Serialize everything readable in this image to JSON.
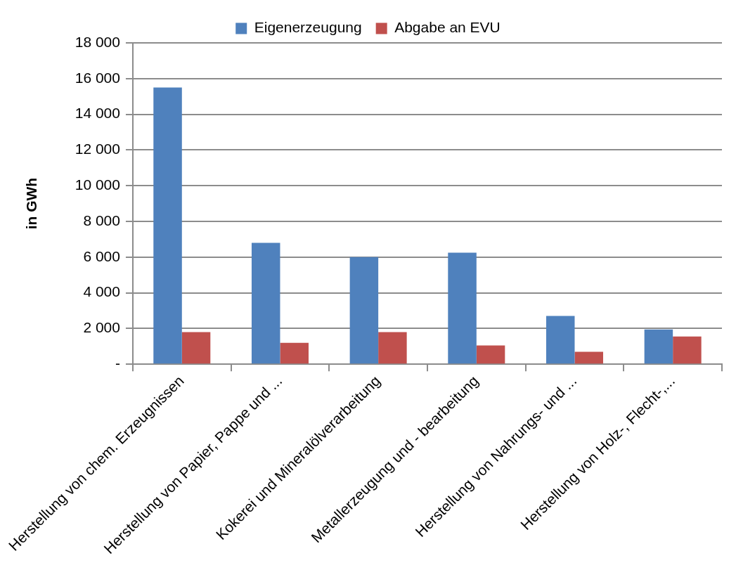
{
  "chart_data": {
    "type": "bar",
    "ylabel": "in GWh",
    "categories": [
      "Herstellung von chem. Erzeugnissen",
      "Herstellung von Papier, Pappe und ...",
      "Kokerei und Mineralölverarbeitung",
      "Metallerzeugung und - bearbeitung",
      "Herstellung von Nahrungs- und ...",
      "Herstellung von Holz-, Flecht-,..."
    ],
    "series": [
      {
        "name": "Eigenerzeugung",
        "color": "#4f81bd",
        "values": [
          15500,
          6800,
          6000,
          6250,
          2700,
          1950
        ]
      },
      {
        "name": "Abgabe an EVU",
        "color": "#c0504d",
        "values": [
          1800,
          1200,
          1800,
          1050,
          700,
          1550
        ]
      }
    ],
    "ylim": [
      0,
      18000
    ],
    "yticks": [
      {
        "value": 0,
        "label": "-"
      },
      {
        "value": 2000,
        "label": "2 000"
      },
      {
        "value": 4000,
        "label": "4 000"
      },
      {
        "value": 6000,
        "label": "6 000"
      },
      {
        "value": 8000,
        "label": "8 000"
      },
      {
        "value": 10000,
        "label": "10 000"
      },
      {
        "value": 12000,
        "label": "12 000"
      },
      {
        "value": 14000,
        "label": "14 000"
      },
      {
        "value": 16000,
        "label": "16 000"
      },
      {
        "value": 18000,
        "label": "18 000"
      }
    ],
    "grid": "y",
    "legend": "top"
  }
}
